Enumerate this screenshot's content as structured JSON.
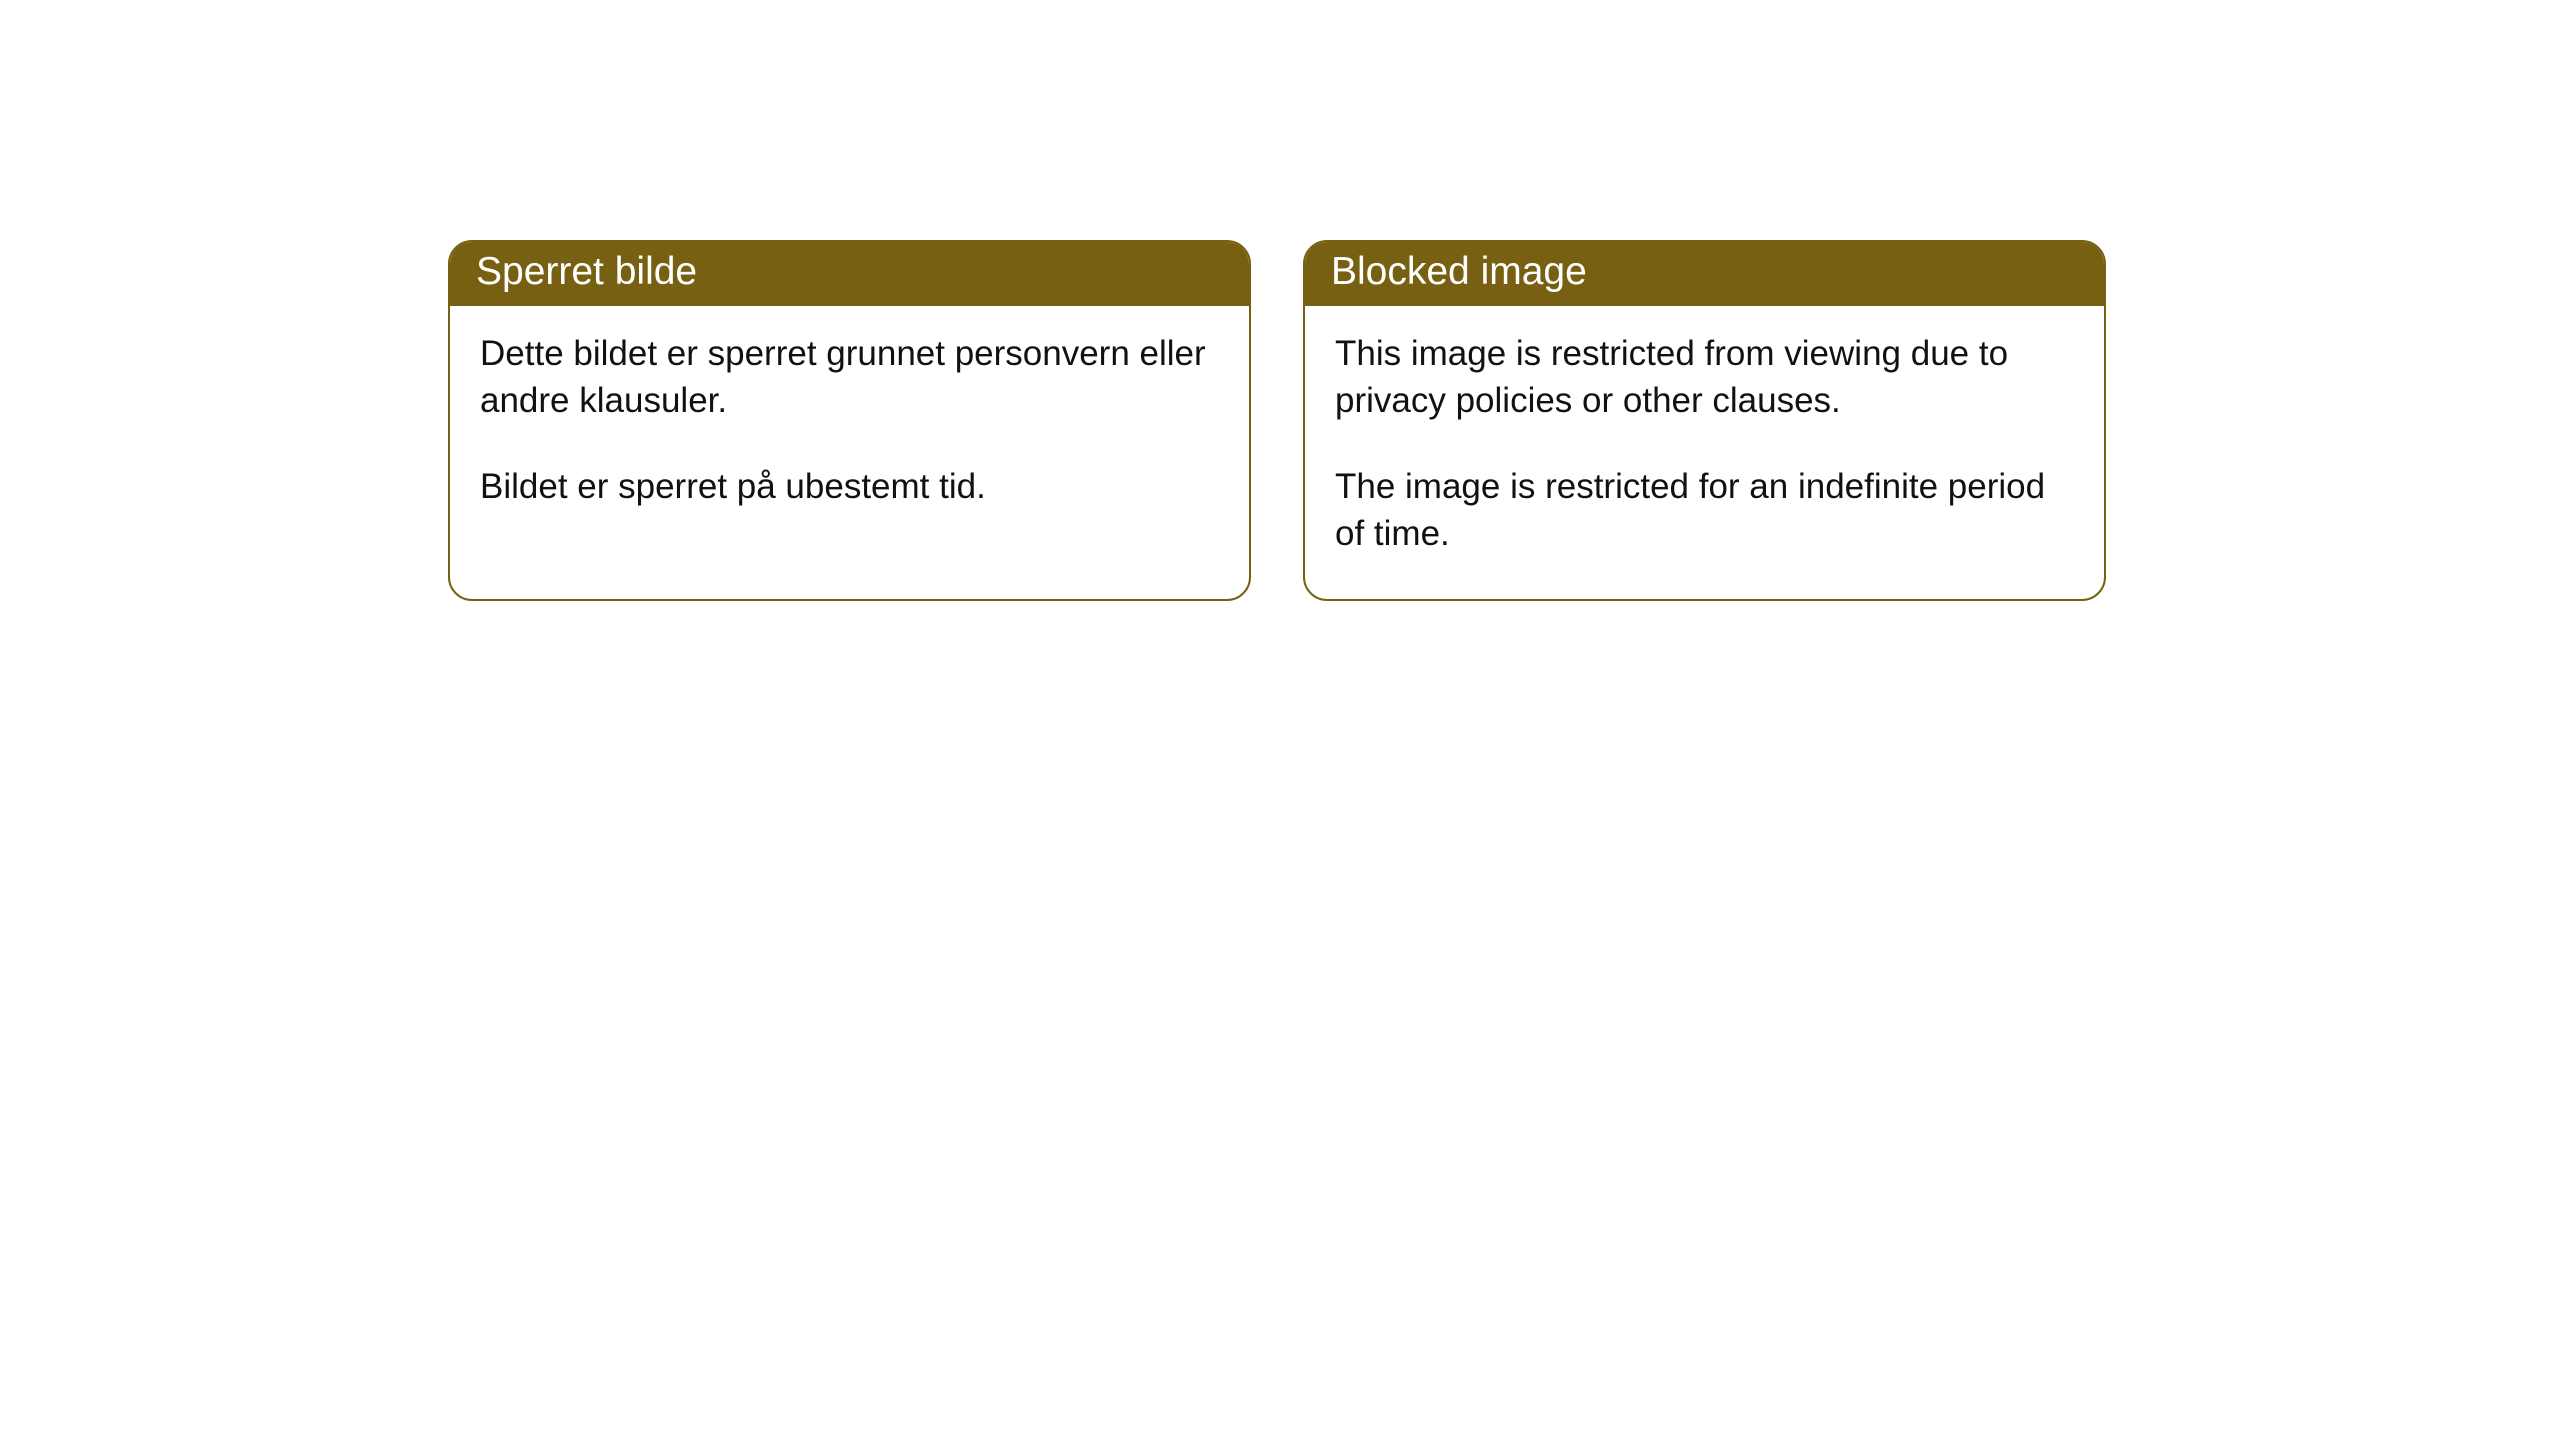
{
  "colors": {
    "card_border": "#786013",
    "card_header_bg": "#786013",
    "card_header_text": "#ffffff",
    "card_body_bg": "#ffffff",
    "body_text": "#111111"
  },
  "cards": [
    {
      "title": "Sperret bilde",
      "paragraphs": [
        "Dette bildet er sperret grunnet personvern eller andre klausuler.",
        "Bildet er sperret på ubestemt tid."
      ]
    },
    {
      "title": "Blocked image",
      "paragraphs": [
        "This image is restricted from viewing due to privacy policies or other clauses.",
        "The image is restricted for an indefinite period of time."
      ]
    }
  ]
}
